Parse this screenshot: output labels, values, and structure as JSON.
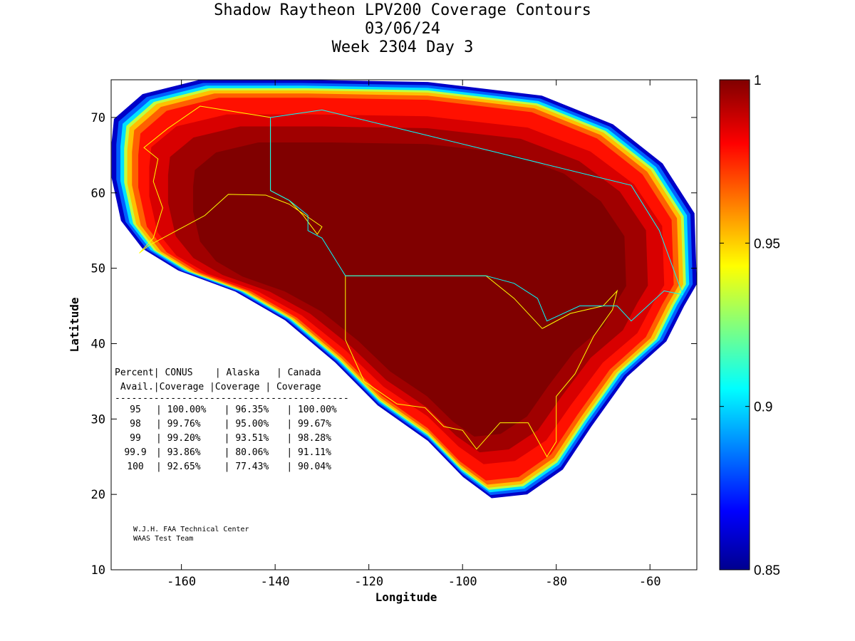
{
  "chart_data": {
    "type": "heatmap",
    "title": [
      "Shadow Raytheon LPV200 Coverage Contours",
      "03/06/24",
      "Week 2304 Day 3"
    ],
    "xlabel": "Longitude",
    "ylabel": "Latitude",
    "xlim": [
      -175,
      -50
    ],
    "ylim": [
      10,
      75
    ],
    "xticks": [
      "-160",
      "-140",
      "-120",
      "-100",
      "-80",
      "-60"
    ],
    "xtick_values": [
      -160,
      -140,
      -120,
      -100,
      -80,
      -60
    ],
    "yticks": [
      "10",
      "20",
      "30",
      "40",
      "50",
      "60",
      "70"
    ],
    "ytick_values": [
      10,
      20,
      30,
      40,
      50,
      60,
      70
    ],
    "colorbar": {
      "range": [
        0.85,
        1
      ],
      "ticks": [
        "0.85",
        "0.9",
        "0.95",
        "1"
      ],
      "tick_values": [
        0.85,
        0.9,
        0.95,
        1
      ],
      "colormap": "jet"
    },
    "table": {
      "header1": "Percent| CONUS    | Alaska   | Canada",
      "header2": " Avail.|Coverage |Coverage | Coverage",
      "rule": "------------------------------------------",
      "rows": [
        {
          "avail": "95",
          "conus": "100.00%",
          "alaska": "96.35%",
          "canada": "100.00%"
        },
        {
          "avail": "98",
          "conus": "99.76%",
          "alaska": "95.00%",
          "canada": "99.67%"
        },
        {
          "avail": "99",
          "conus": "99.20%",
          "alaska": "93.51%",
          "canada": "98.28%"
        },
        {
          "avail": "99.9",
          "conus": "93.86%",
          "alaska": "80.06%",
          "canada": "91.11%"
        },
        {
          "avail": "100",
          "conus": "92.65%",
          "alaska": "77.43%",
          "canada": "90.04%"
        }
      ]
    },
    "credits": [
      "W.J.H. FAA Technical Center",
      "WAAS Test Team"
    ]
  }
}
